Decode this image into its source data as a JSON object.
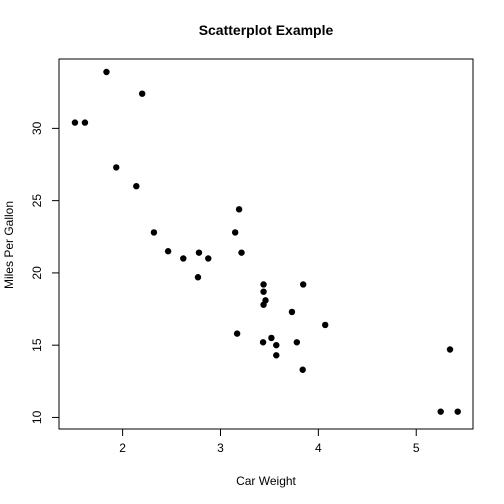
{
  "chart_data": {
    "type": "scatter",
    "title": "Scatterplot Example",
    "xlabel": "Car Weight",
    "ylabel": "Miles Per Gallon",
    "xlim": [
      1.35,
      5.58
    ],
    "ylim": [
      9.2,
      34.8
    ],
    "xticks": [
      2,
      3,
      4,
      5
    ],
    "yticks": [
      10,
      15,
      20,
      25,
      30
    ],
    "grid": false,
    "legend": "none",
    "point_color": "#000000",
    "points": [
      {
        "x": 2.62,
        "y": 21.0
      },
      {
        "x": 2.875,
        "y": 21.0
      },
      {
        "x": 2.32,
        "y": 22.8
      },
      {
        "x": 3.215,
        "y": 21.4
      },
      {
        "x": 3.44,
        "y": 18.7
      },
      {
        "x": 3.46,
        "y": 18.1
      },
      {
        "x": 3.57,
        "y": 14.3
      },
      {
        "x": 3.19,
        "y": 24.4
      },
      {
        "x": 3.15,
        "y": 22.8
      },
      {
        "x": 3.44,
        "y": 19.2
      },
      {
        "x": 3.44,
        "y": 17.8
      },
      {
        "x": 4.07,
        "y": 16.4
      },
      {
        "x": 3.73,
        "y": 17.3
      },
      {
        "x": 3.78,
        "y": 15.2
      },
      {
        "x": 5.25,
        "y": 10.4
      },
      {
        "x": 5.424,
        "y": 10.4
      },
      {
        "x": 5.345,
        "y": 14.7
      },
      {
        "x": 2.2,
        "y": 32.4
      },
      {
        "x": 1.615,
        "y": 30.4
      },
      {
        "x": 1.835,
        "y": 33.9
      },
      {
        "x": 2.465,
        "y": 21.5
      },
      {
        "x": 3.52,
        "y": 15.5
      },
      {
        "x": 3.435,
        "y": 15.2
      },
      {
        "x": 3.84,
        "y": 13.3
      },
      {
        "x": 3.845,
        "y": 19.2
      },
      {
        "x": 1.935,
        "y": 27.3
      },
      {
        "x": 2.14,
        "y": 26.0
      },
      {
        "x": 1.513,
        "y": 30.4
      },
      {
        "x": 3.17,
        "y": 15.8
      },
      {
        "x": 2.77,
        "y": 19.7
      },
      {
        "x": 3.57,
        "y": 15.0
      },
      {
        "x": 2.78,
        "y": 21.4
      }
    ]
  }
}
